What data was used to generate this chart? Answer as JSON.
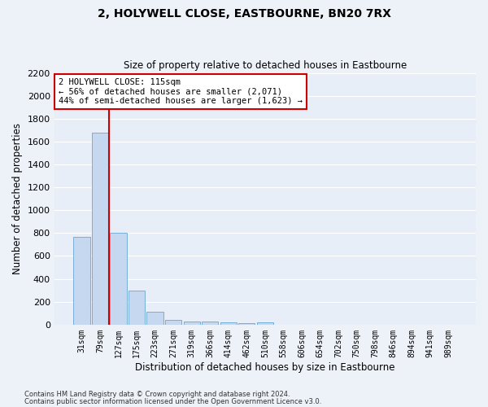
{
  "title": "2, HOLYWELL CLOSE, EASTBOURNE, BN20 7RX",
  "subtitle": "Size of property relative to detached houses in Eastbourne",
  "xlabel": "Distribution of detached houses by size in Eastbourne",
  "ylabel": "Number of detached properties",
  "bar_color": "#c5d8f0",
  "bar_edge_color": "#7aaed6",
  "background_color": "#e8eef8",
  "grid_color": "#ffffff",
  "fig_bg_color": "#edf1f8",
  "categories": [
    "31sqm",
    "79sqm",
    "127sqm",
    "175sqm",
    "223sqm",
    "271sqm",
    "319sqm",
    "366sqm",
    "414sqm",
    "462sqm",
    "510sqm",
    "558sqm",
    "606sqm",
    "654sqm",
    "702sqm",
    "750sqm",
    "798sqm",
    "846sqm",
    "894sqm",
    "941sqm",
    "989sqm"
  ],
  "values": [
    770,
    1680,
    800,
    300,
    110,
    45,
    30,
    25,
    20,
    15,
    20,
    0,
    0,
    0,
    0,
    0,
    0,
    0,
    0,
    0,
    0
  ],
  "ylim": [
    0,
    2200
  ],
  "yticks": [
    0,
    200,
    400,
    600,
    800,
    1000,
    1200,
    1400,
    1600,
    1800,
    2000,
    2200
  ],
  "property_line_x": 1.5,
  "annotation_title": "2 HOLYWELL CLOSE: 115sqm",
  "annotation_line1": "← 56% of detached houses are smaller (2,071)",
  "annotation_line2": "44% of semi-detached houses are larger (1,623) →",
  "annotation_box_color": "#ffffff",
  "annotation_box_edge": "#cc0000",
  "line_color": "#cc0000",
  "footer1": "Contains HM Land Registry data © Crown copyright and database right 2024.",
  "footer2": "Contains public sector information licensed under the Open Government Licence v3.0."
}
